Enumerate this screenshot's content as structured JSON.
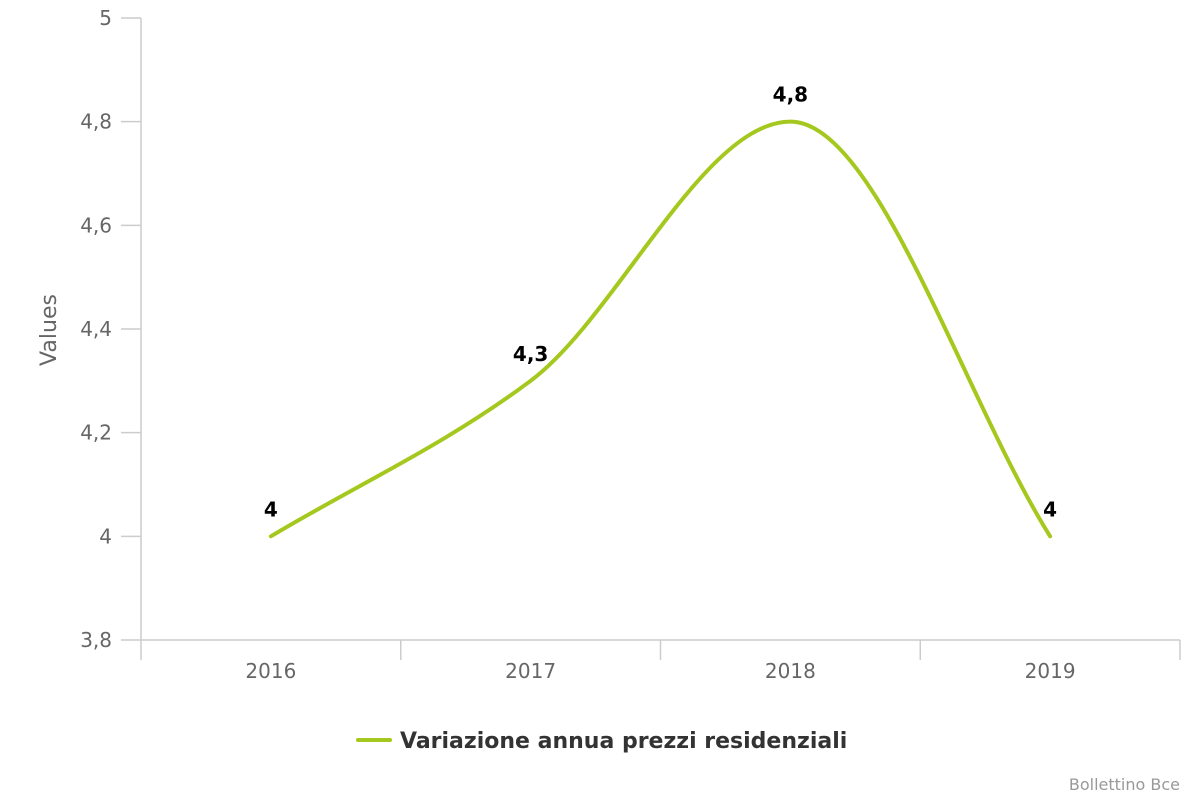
{
  "chart_data": {
    "type": "line",
    "categories": [
      "2016",
      "2017",
      "2018",
      "2019"
    ],
    "series": [
      {
        "name": "Variazione annua prezzi residenziali",
        "values": [
          4,
          4.3,
          4.8,
          4
        ],
        "value_labels": [
          "4",
          "4,3",
          "4,8",
          "4"
        ],
        "color": "#a5c81e"
      }
    ],
    "ylabel": "Values",
    "ylim": [
      3.8,
      5
    ],
    "yticks": [
      3.8,
      4,
      4.2,
      4.4,
      4.6,
      4.8,
      5
    ],
    "ytick_labels": [
      "3,8",
      "4",
      "4,2",
      "4,4",
      "4,6",
      "4,8",
      "5"
    ],
    "grid": false,
    "legend_position": "bottom-center",
    "credits": "Bollettino Bce"
  },
  "colors": {
    "axis": "#cccccc",
    "text": "#666666"
  }
}
